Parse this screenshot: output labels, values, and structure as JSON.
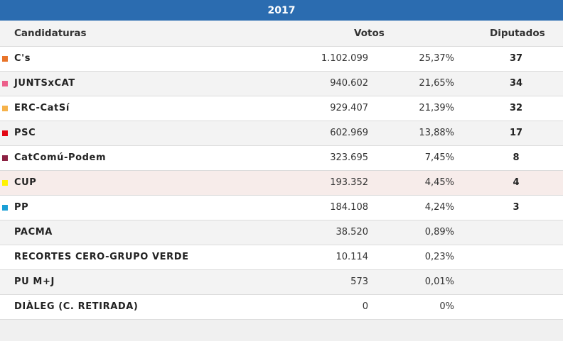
{
  "year": "2017",
  "headers": {
    "candidaturas": "Candidaturas",
    "votos": "Votos",
    "diputados": "Diputados"
  },
  "rows": [
    {
      "name": "C's",
      "votes": "1.102.099",
      "pct": "25,37%",
      "seats": "37",
      "color": "#e8742a"
    },
    {
      "name": "JUNTSxCAT",
      "votes": "940.602",
      "pct": "21,65%",
      "seats": "34",
      "color": "#ec5f8a"
    },
    {
      "name": "ERC-CatSí",
      "votes": "929.407",
      "pct": "21,39%",
      "seats": "32",
      "color": "#f6b24a"
    },
    {
      "name": "PSC",
      "votes": "602.969",
      "pct": "13,88%",
      "seats": "17",
      "color": "#e30613"
    },
    {
      "name": "CatComú-Podem",
      "votes": "323.695",
      "pct": "7,45%",
      "seats": "8",
      "color": "#8b2142"
    },
    {
      "name": "CUP",
      "votes": "193.352",
      "pct": "4,45%",
      "seats": "4",
      "color": "#fff200"
    },
    {
      "name": "PP",
      "votes": "184.108",
      "pct": "4,24%",
      "seats": "3",
      "color": "#1a9fd6"
    },
    {
      "name": "PACMA",
      "votes": "38.520",
      "pct": "0,89%",
      "seats": "",
      "color": ""
    },
    {
      "name": "RECORTES CERO-GRUPO VERDE",
      "votes": "10.114",
      "pct": "0,23%",
      "seats": "",
      "color": ""
    },
    {
      "name": "PU M+J",
      "votes": "573",
      "pct": "0,01%",
      "seats": "",
      "color": ""
    },
    {
      "name": "DIÀLEG (C. RETIRADA)",
      "votes": "0",
      "pct": "0%",
      "seats": "",
      "color": ""
    }
  ],
  "highlighted_row": 5
}
